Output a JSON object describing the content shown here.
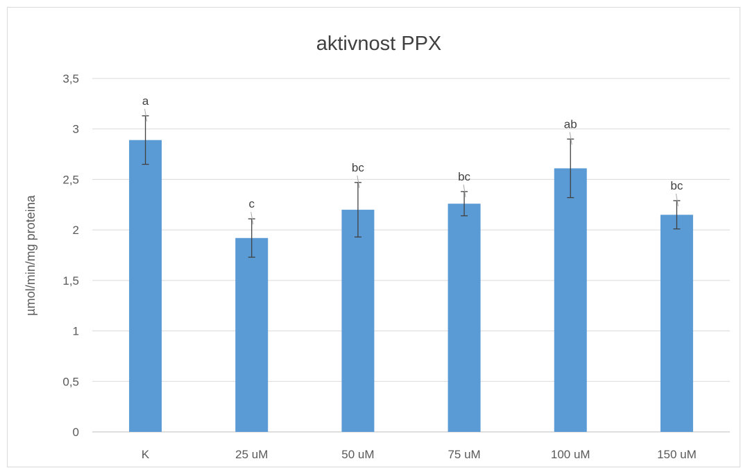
{
  "chart_data": {
    "type": "bar",
    "title": "aktivnost PPX",
    "xlabel": "",
    "ylabel": "µmol/min/mg proteina",
    "categories": [
      "K",
      "25 uM",
      "50 uM",
      "75 uM",
      "100 uM",
      "150 uM"
    ],
    "values": [
      2.89,
      1.92,
      2.2,
      2.26,
      2.61,
      2.15
    ],
    "error": [
      0.24,
      0.19,
      0.27,
      0.12,
      0.29,
      0.14
    ],
    "annotations": [
      "a",
      "c",
      "bc",
      "bc",
      "ab",
      "bc"
    ],
    "ylim": [
      0,
      3.5
    ],
    "yticks": [
      "0",
      "0,5",
      "1",
      "1,5",
      "2",
      "2,5",
      "3",
      "3,5"
    ],
    "grid": true,
    "legend": "none",
    "colors": {
      "bar": "#5b9bd5",
      "grid": "#d9d9d9",
      "text": "#595959",
      "title": "#404040",
      "error": "#404040"
    }
  }
}
